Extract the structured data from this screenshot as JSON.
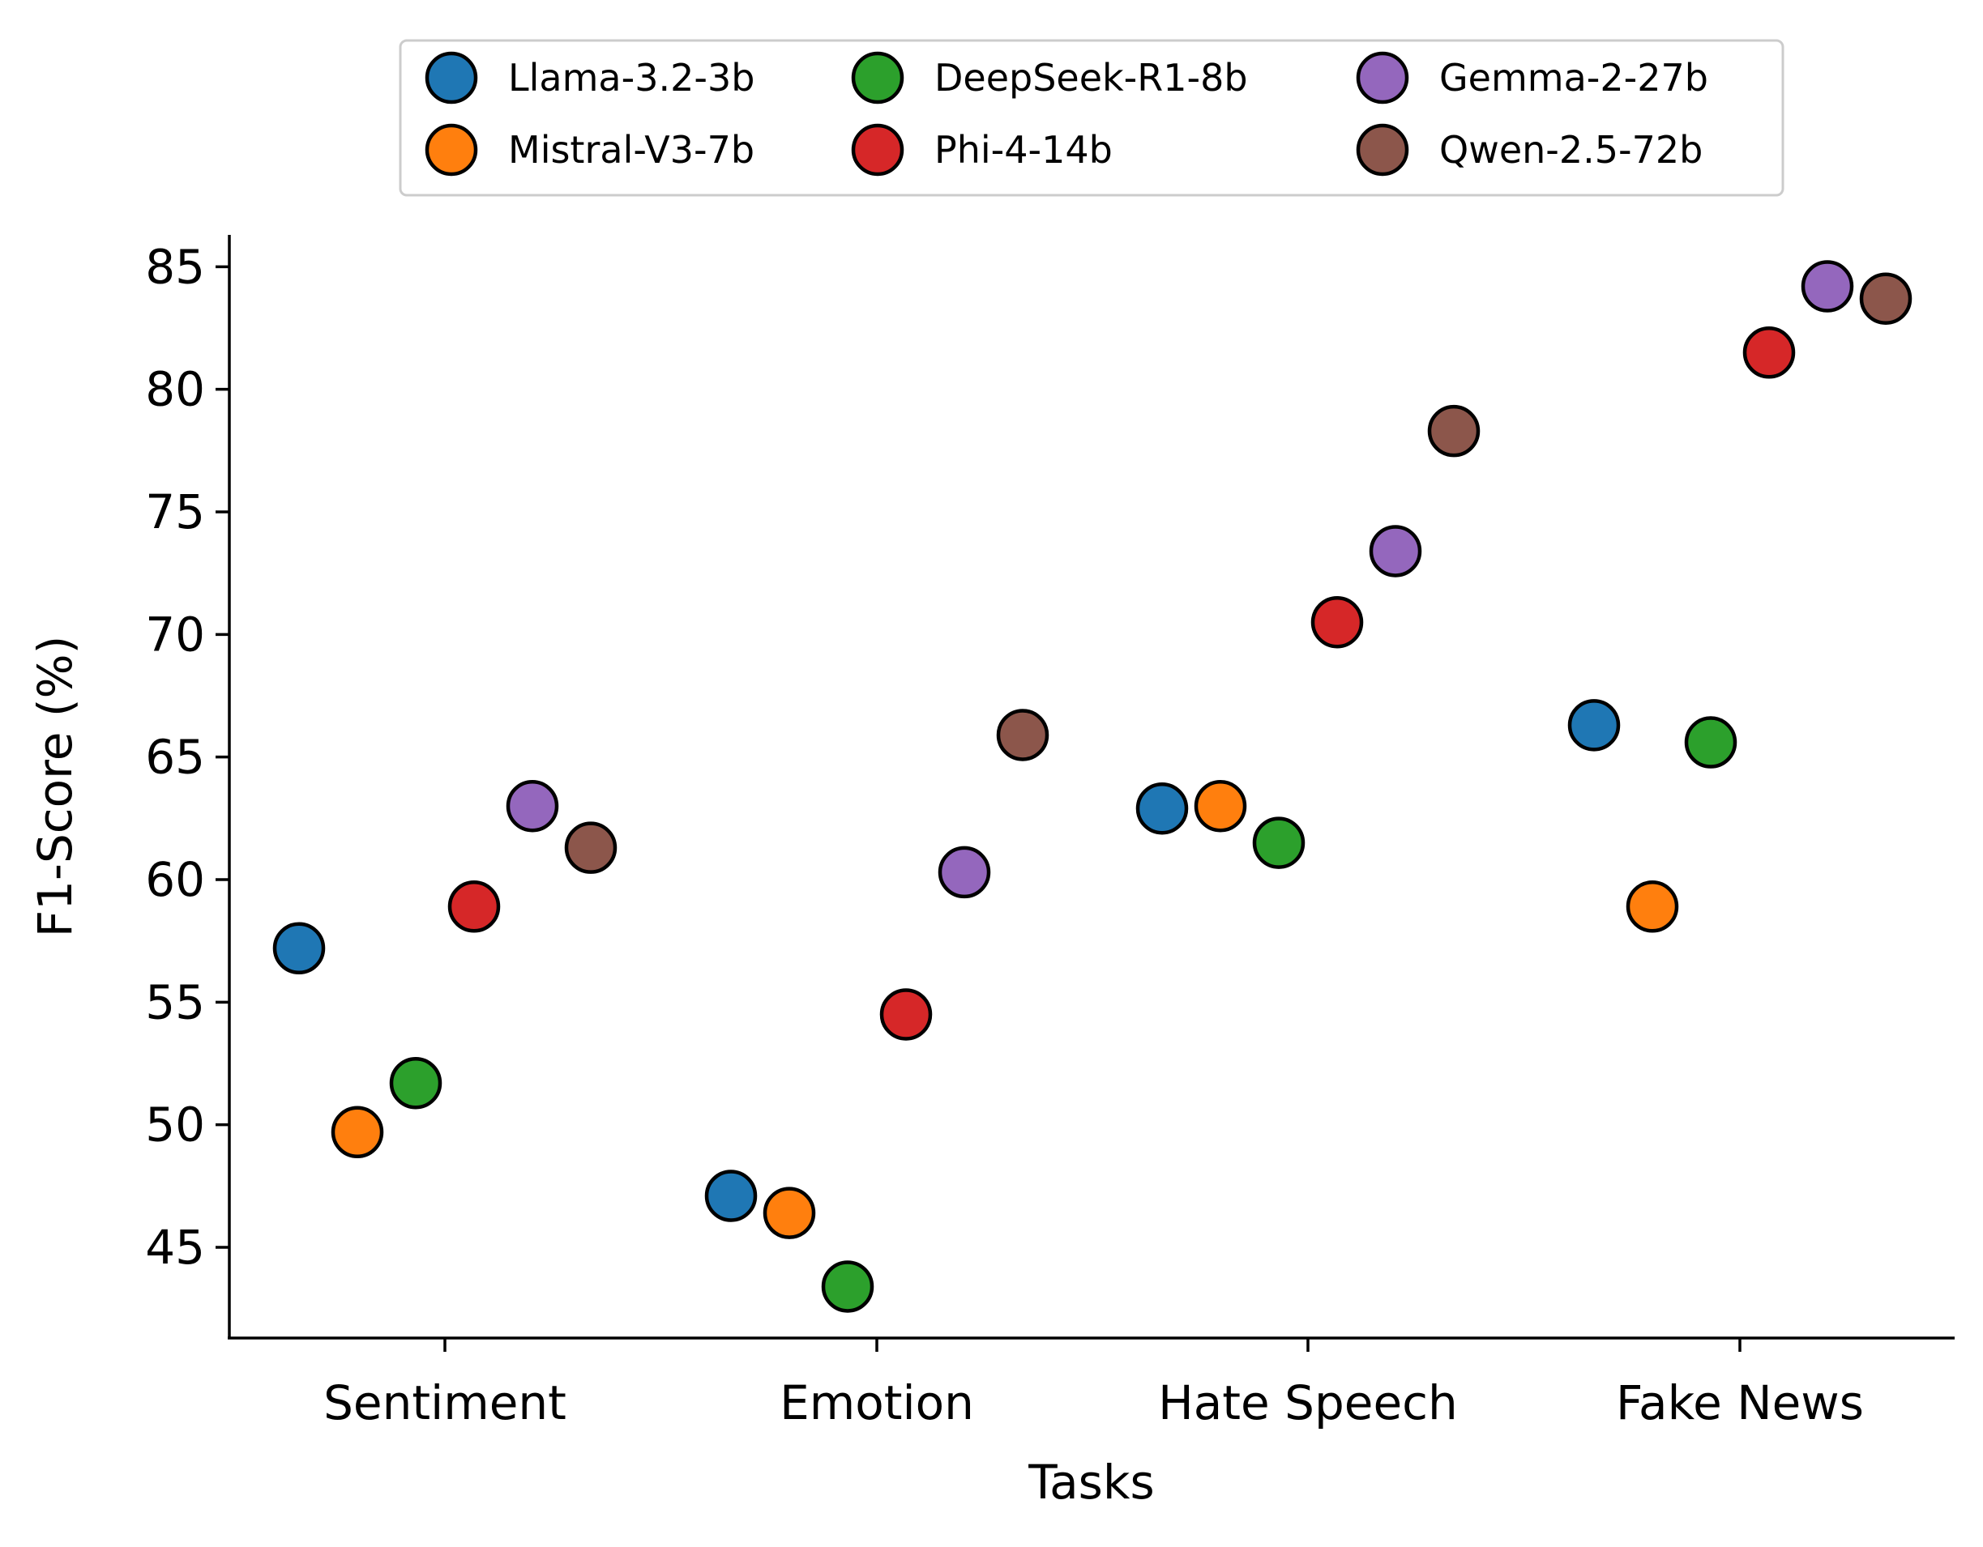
{
  "chart_data": {
    "type": "scatter",
    "categories": [
      "Sentiment",
      "Emotion",
      "Hate Speech",
      "Fake News"
    ],
    "xlabel": "Tasks",
    "ylabel": "F1-Score (%)",
    "ylim": [
      41.3,
      86.3
    ],
    "yticks": [
      45,
      50,
      55,
      60,
      65,
      70,
      75,
      80,
      85
    ],
    "legend_position": "top-center",
    "grid": false,
    "series": [
      {
        "name": "Llama-3.2-3b",
        "color": "#1f77b4",
        "values": [
          57.2,
          47.1,
          62.9,
          66.3
        ]
      },
      {
        "name": "Mistral-V3-7b",
        "color": "#ff7f0e",
        "values": [
          49.7,
          46.4,
          63.0,
          58.9
        ]
      },
      {
        "name": "DeepSeek-R1-8b",
        "color": "#2ca02c",
        "values": [
          51.7,
          43.4,
          61.5,
          65.6
        ]
      },
      {
        "name": "Phi-4-14b",
        "color": "#d62728",
        "values": [
          58.9,
          54.5,
          70.5,
          81.5
        ]
      },
      {
        "name": "Gemma-2-27b",
        "color": "#9467bd",
        "values": [
          63.0,
          60.3,
          73.4,
          84.2
        ]
      },
      {
        "name": "Qwen-2.5-72b",
        "color": "#8c564b",
        "values": [
          61.3,
          65.9,
          78.3,
          83.7
        ]
      }
    ]
  }
}
